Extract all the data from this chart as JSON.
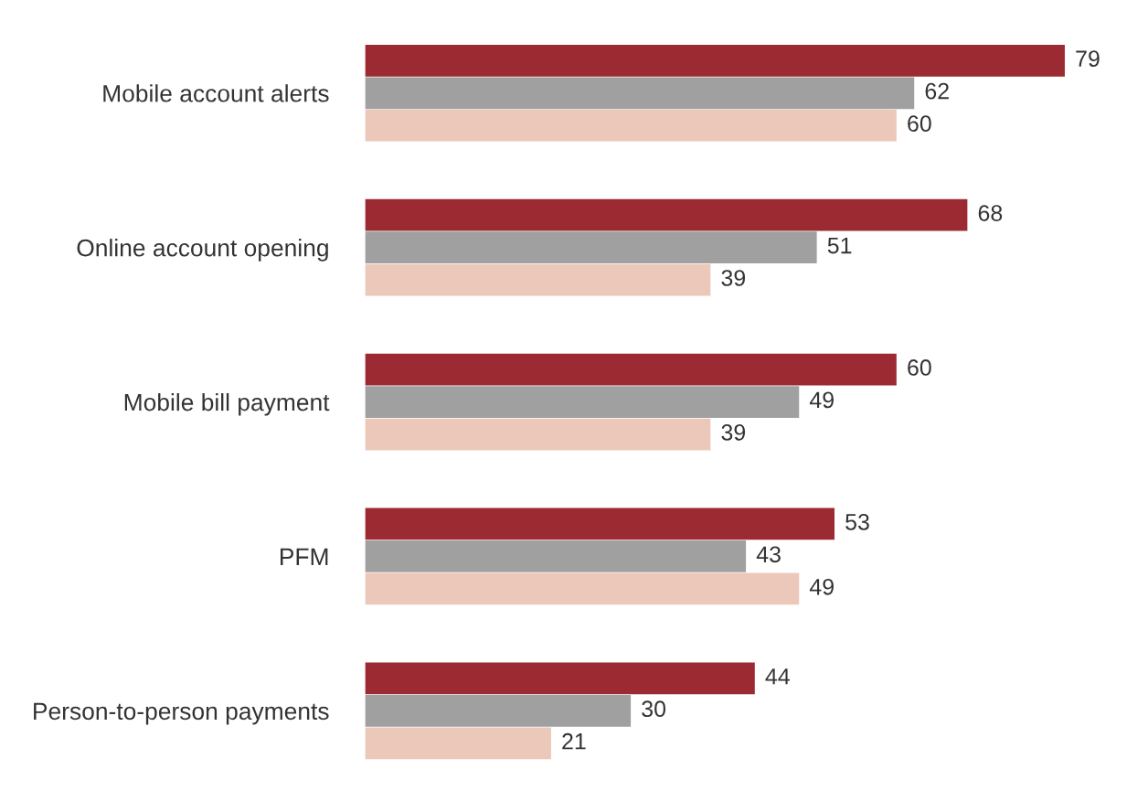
{
  "chart_data": {
    "type": "bar",
    "orientation": "horizontal",
    "data_labels": true,
    "grid": false,
    "legend": false,
    "categories": [
      "Mobile account alerts",
      "Online account opening",
      "Mobile bill payment",
      "PFM",
      "Person-to-person payments"
    ],
    "series": [
      {
        "color": "#9c2a33",
        "values": [
          79,
          68,
          60,
          53,
          44
        ]
      },
      {
        "color": "#a0a0a0",
        "values": [
          62,
          51,
          49,
          43,
          30
        ]
      },
      {
        "color": "#ecc8bb",
        "values": [
          60,
          39,
          39,
          49,
          21
        ]
      }
    ]
  }
}
